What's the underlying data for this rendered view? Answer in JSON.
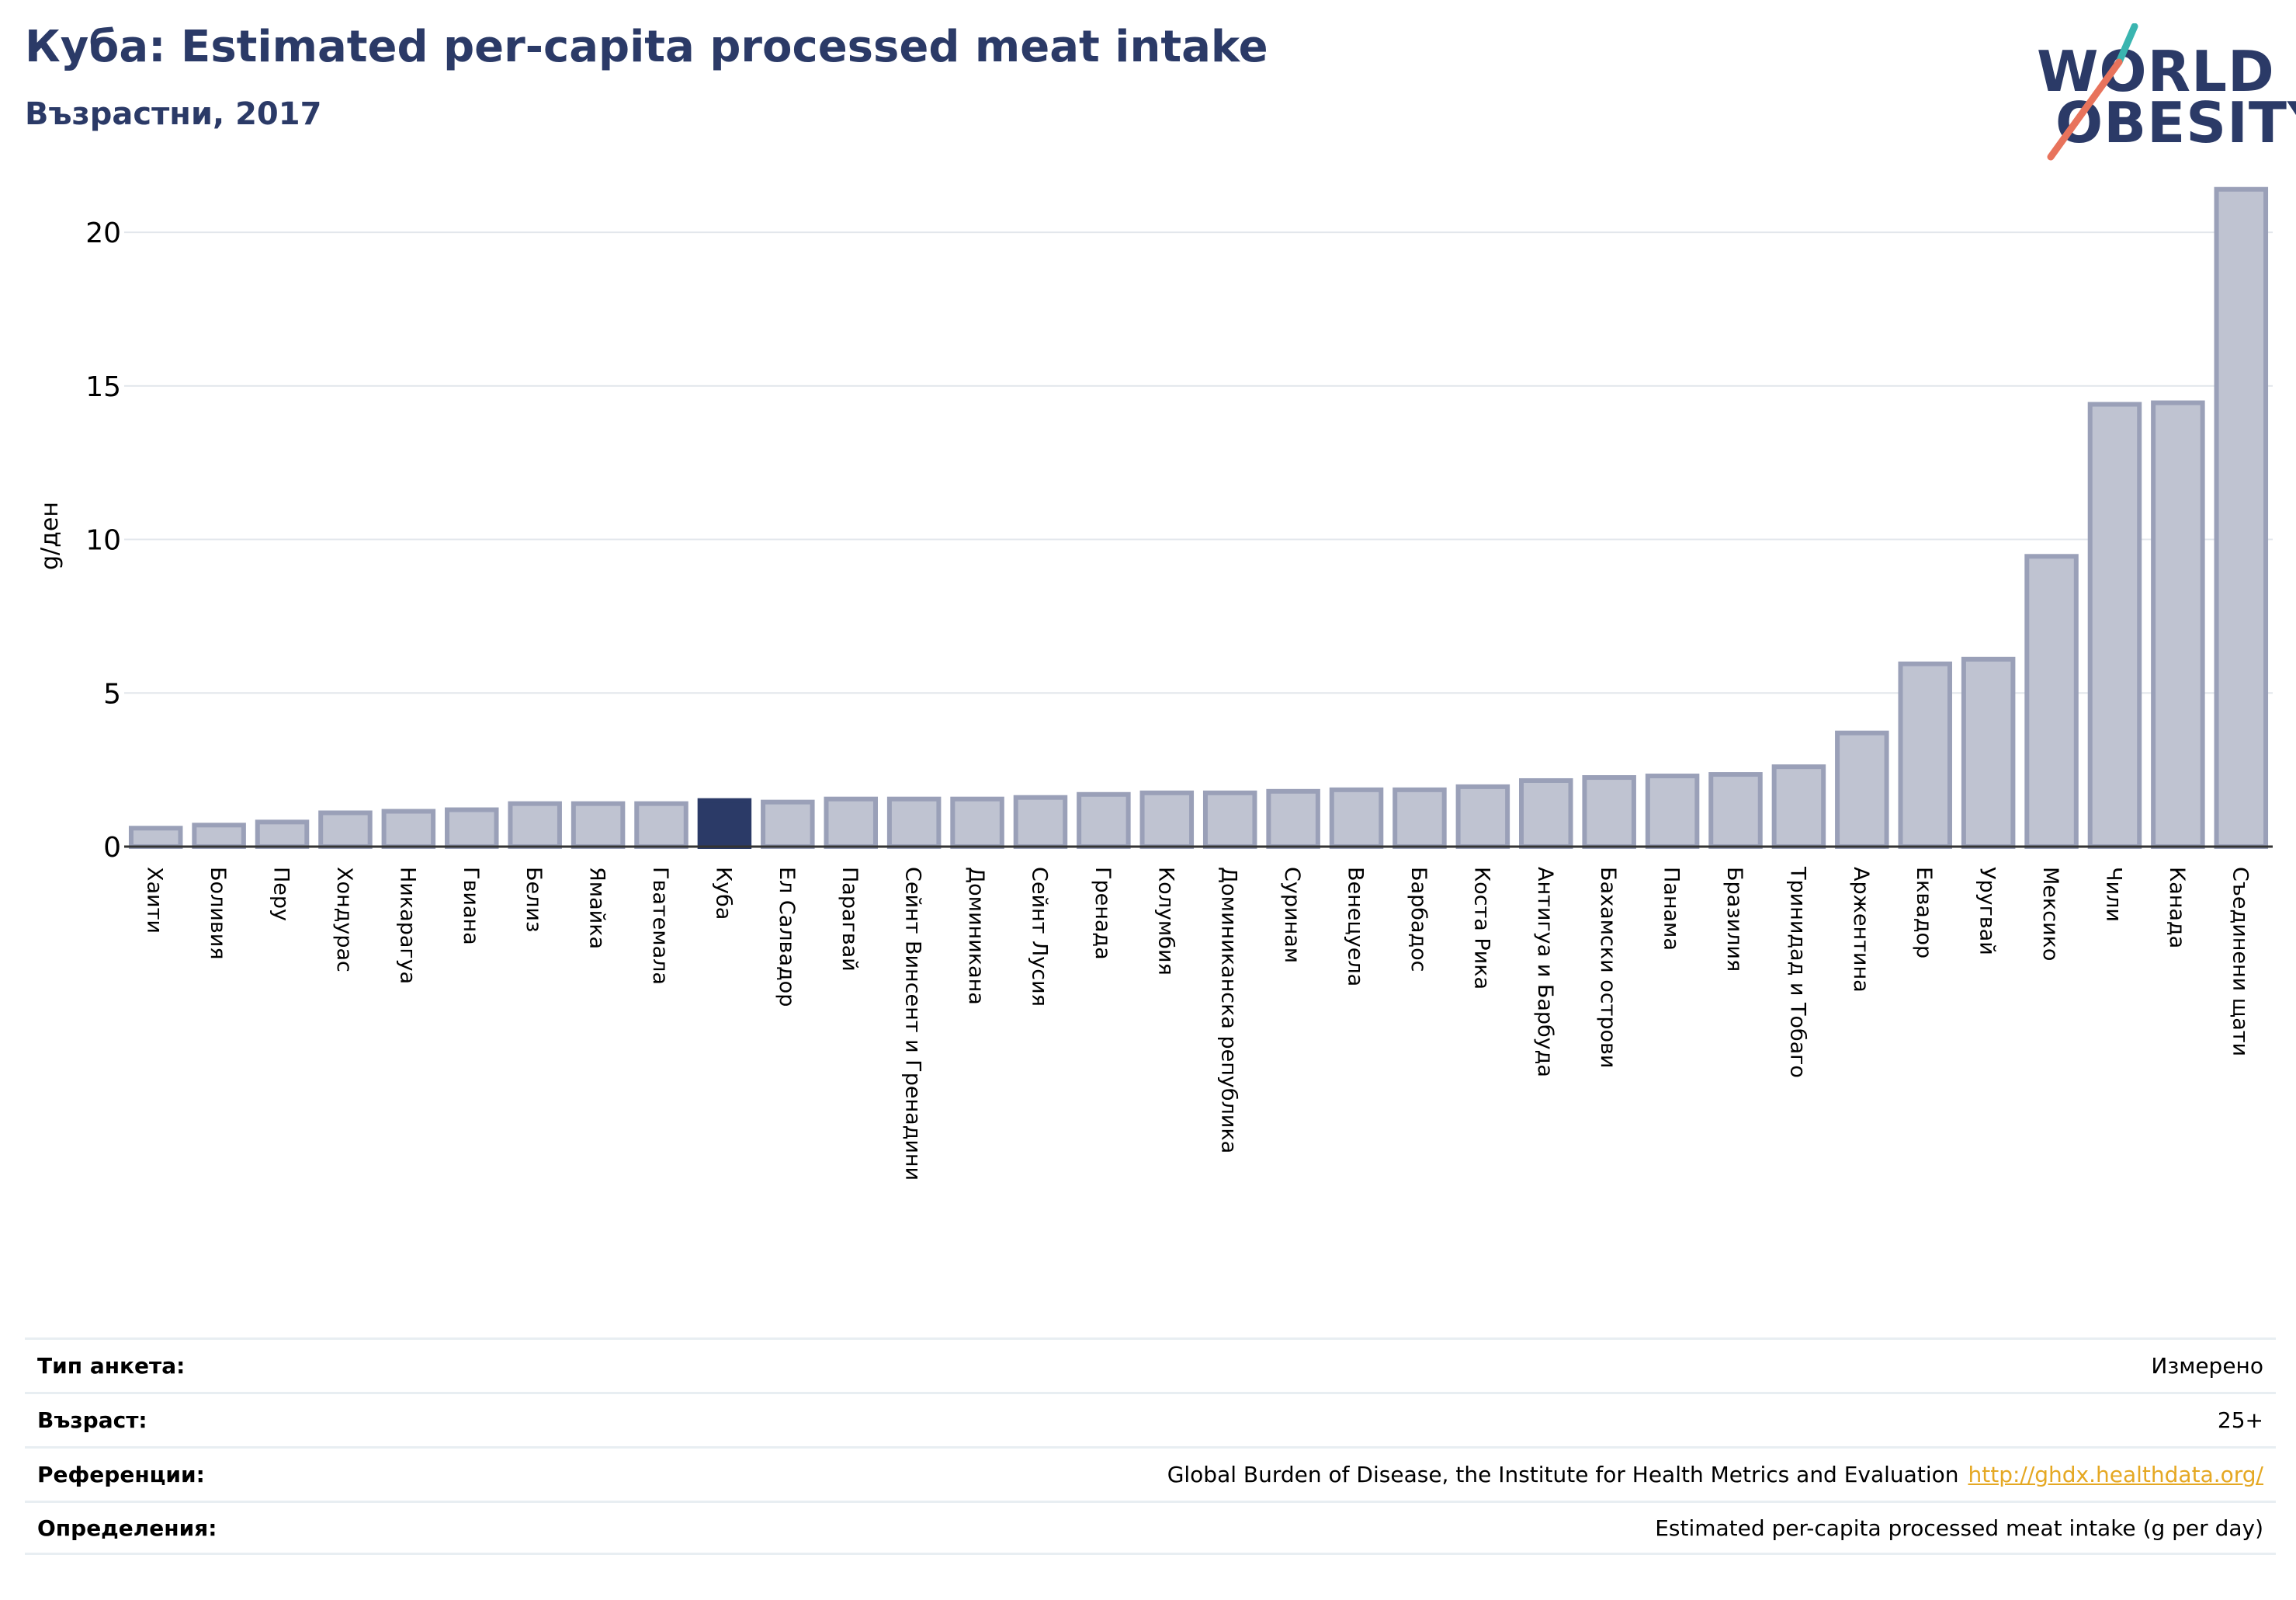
{
  "header": {
    "title": "Куба: Estimated per-capita processed meat intake",
    "subtitle": "Възрастни, 2017"
  },
  "logo": {
    "line1": "WORLD",
    "line2": "OBESITY",
    "slash_colors": [
      "#3ab5b0",
      "#e8735c"
    ]
  },
  "colors": {
    "bar": "#bfc3d1",
    "bar_border": "#9aa0b8",
    "highlight": "#2b3a67",
    "axis": "#333333",
    "grid": "#e3e7ec"
  },
  "chart_data": {
    "type": "bar",
    "ylabel": "g/ден",
    "ylim": [
      0,
      22
    ],
    "yticks": [
      0,
      5,
      10,
      15,
      20
    ],
    "grid": true,
    "highlight": "Куба",
    "categories": [
      "Хаити",
      "Боливия",
      "Перу",
      "Хондурас",
      "Никарагуа",
      "Гвиана",
      "Белиз",
      "Ямайка",
      "Гватемала",
      "Куба",
      "Ел Салвадор",
      "Парагвай",
      "Сейнт Винсент и Гренадини",
      "Доминикана",
      "Сейнт Лусия",
      "Гренада",
      "Колумбия",
      "Доминиканска република",
      "Суринам",
      "Венецуела",
      "Барбадос",
      "Коста Рика",
      "Антигуа и Барбуда",
      "Бахамски острови",
      "Панама",
      "Бразилия",
      "Тринидад и Тобаго",
      "Аржентина",
      "Еквадор",
      "Уругвай",
      "Мексико",
      "Чили",
      "Канада",
      "Съединени щати"
    ],
    "values": [
      0.6,
      0.7,
      0.8,
      1.1,
      1.15,
      1.2,
      1.4,
      1.4,
      1.4,
      1.5,
      1.45,
      1.55,
      1.55,
      1.55,
      1.6,
      1.7,
      1.75,
      1.75,
      1.8,
      1.85,
      1.85,
      1.95,
      2.15,
      2.25,
      2.3,
      2.35,
      2.6,
      3.7,
      5.95,
      6.1,
      9.45,
      14.4,
      14.45,
      21.4
    ]
  },
  "footer": {
    "rows": [
      {
        "label": "Тип анкета:",
        "value": "Измерено"
      },
      {
        "label": "Възраст:",
        "value": "25+"
      },
      {
        "label": "Референции:",
        "value": "Global Burden of Disease, the Institute for Health Metrics and Evaluation",
        "link": "http://ghdx.healthdata.org/"
      },
      {
        "label": "Определения:",
        "value": "Estimated per-capita processed meat intake (g per day)"
      }
    ]
  }
}
